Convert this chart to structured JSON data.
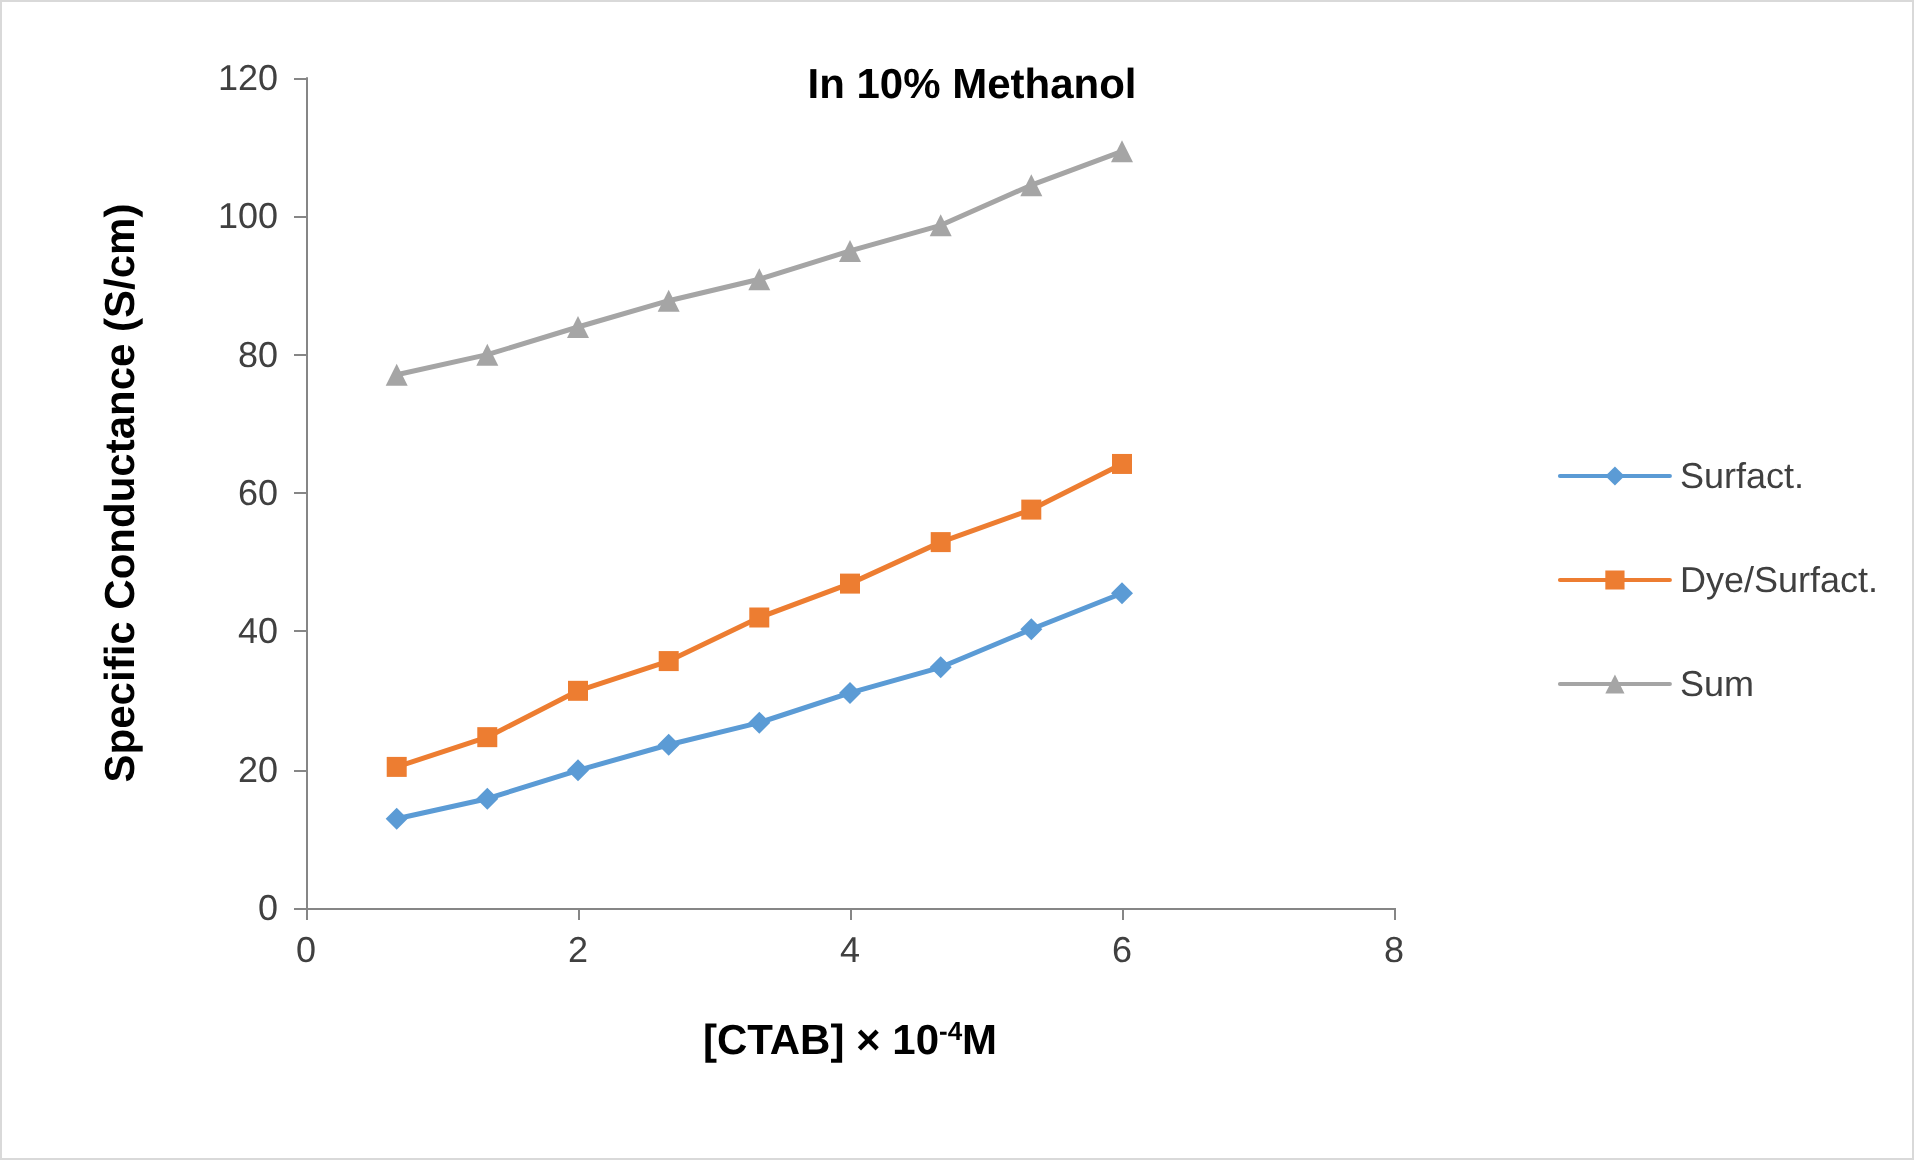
{
  "chart_data": {
    "type": "line",
    "title": "In 10% Methanol",
    "xlabel": "[CTAB] × 10$^{-4}$M",
    "ylabel": "Specific Conductance (S/cm)",
    "x": [
      0.667,
      1.333,
      2,
      2.667,
      3.333,
      4,
      4.667,
      5.333,
      6
    ],
    "series": [
      {
        "name": "Surfact.",
        "color": "#5b9bd5",
        "marker": "diamond",
        "values": [
          12.9,
          15.8,
          19.9,
          23.6,
          26.8,
          31.1,
          34.8,
          40.3,
          45.5
        ]
      },
      {
        "name": "Dye/Surfact.",
        "color": "#ed7d31",
        "marker": "square",
        "values": [
          20.4,
          24.7,
          31.4,
          35.7,
          42.0,
          46.9,
          52.9,
          57.6,
          64.2
        ]
      },
      {
        "name": "Sum",
        "color": "#a5a5a5",
        "marker": "triangle",
        "values": [
          77.1,
          80.0,
          84.0,
          87.8,
          90.9,
          95.0,
          98.7,
          104.5,
          109.4
        ]
      }
    ],
    "xlim": [
      0,
      8
    ],
    "xticks": [
      0,
      2,
      4,
      6,
      8
    ],
    "ylim": [
      0,
      120
    ],
    "yticks": [
      0,
      20,
      40,
      60,
      80,
      100,
      120
    ],
    "grid": false,
    "legend": "right",
    "line_style": "solid"
  }
}
